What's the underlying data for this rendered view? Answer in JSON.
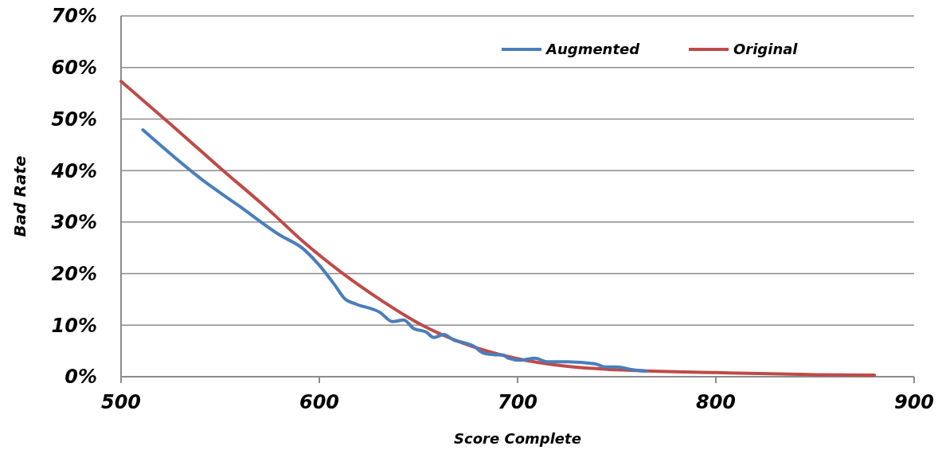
{
  "chart_data": {
    "type": "line",
    "xlabel": "Score Complete",
    "ylabel": "Bad Rate",
    "xlim": [
      500,
      900
    ],
    "xticks": [
      500,
      600,
      700,
      800,
      900
    ],
    "ylim": [
      0,
      0.7
    ],
    "yticks": [
      {
        "value": 0,
        "label": "0%"
      },
      {
        "value": 0.1,
        "label": "10%"
      },
      {
        "value": 0.2,
        "label": "20%"
      },
      {
        "value": 0.3,
        "label": "30%"
      },
      {
        "value": 0.4,
        "label": "40%"
      },
      {
        "value": 0.5,
        "label": "50%"
      },
      {
        "value": 0.6,
        "label": "60%"
      },
      {
        "value": 0.7,
        "label": "70%"
      }
    ],
    "grid": "y",
    "legend": "top right",
    "marker": "none",
    "line_style": "solid",
    "series": [
      {
        "name": "Augmented",
        "color": "#4a7ebb",
        "x": [
          511,
          540,
          560,
          580,
          591.6,
          599.6,
          607.6,
          612.9,
          618.5,
          630.5,
          637,
          642.6,
          647.8,
          653.8,
          657.8,
          662.7,
          667.9,
          673,
          678,
          682.7,
          688,
          692.8,
          695.2,
          701.2,
          708.8,
          714.9,
          725.3,
          739,
          744.2,
          750.2,
          757.4,
          765
        ],
        "values": [
          0.479,
          0.385,
          0.33,
          0.275,
          0.249,
          0.218,
          0.179,
          0.151,
          0.141,
          0.125,
          0.107,
          0.11,
          0.093,
          0.087,
          0.076,
          0.082,
          0.071,
          0.066,
          0.059,
          0.046,
          0.043,
          0.042,
          0.036,
          0.032,
          0.036,
          0.029,
          0.029,
          0.025,
          0.019,
          0.019,
          0.014,
          0.011
        ]
      },
      {
        "name": "Original",
        "color": "#be4b48",
        "x": [
          500,
          525,
          550,
          575,
          591.6,
          611.6,
          631.7,
          651.8,
          671.9,
          698.8,
          725.3,
          760,
          800,
          850,
          880
        ],
        "values": [
          0.573,
          0.49,
          0.405,
          0.322,
          0.263,
          0.201,
          0.147,
          0.1,
          0.066,
          0.036,
          0.02,
          0.012,
          0.008,
          0.004,
          0.003
        ]
      }
    ]
  }
}
